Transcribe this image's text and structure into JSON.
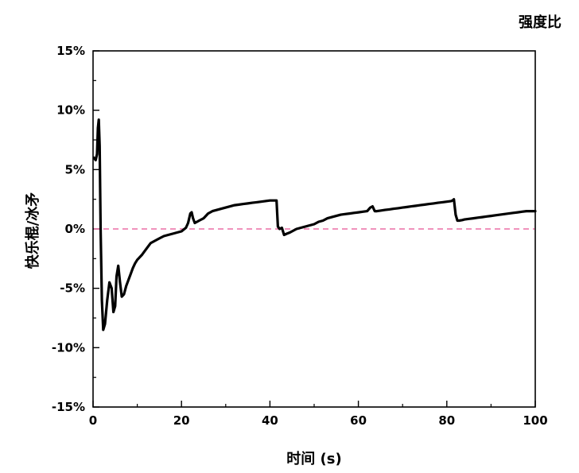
{
  "chart_data": {
    "type": "line",
    "title": "强度比",
    "xlabel": "时间 (s)",
    "ylabel": "快乐棍/冰矛",
    "xlim": [
      0,
      100
    ],
    "ylim": [
      -15,
      15
    ],
    "x_ticks": [
      0,
      20,
      40,
      60,
      80,
      100
    ],
    "x_tick_labels": [
      "0",
      "20",
      "40",
      "60",
      "80",
      "100"
    ],
    "y_ticks": [
      -15,
      -10,
      -5,
      0,
      5,
      10,
      15
    ],
    "y_tick_labels": [
      "-15%",
      "-10%",
      "-5%",
      "0%",
      "5%",
      "10%",
      "15%"
    ],
    "series": [
      {
        "color": "#000000",
        "style": "solid",
        "x": [
          0.2,
          0.6,
          0.9,
          1.1,
          1.3,
          1.5,
          1.7,
          2.0,
          2.3,
          2.7,
          3.2,
          3.7,
          4.2,
          4.6,
          5.0,
          5.3,
          5.7,
          6.1,
          6.5,
          7.0,
          7.5,
          8.0,
          8.5,
          9.0,
          9.5,
          10,
          11,
          12,
          13,
          14,
          15,
          16,
          17,
          18,
          19,
          20,
          21,
          21.5,
          22.0,
          22.3,
          22.6,
          23.0,
          23.5,
          24,
          25,
          26,
          27,
          28,
          29,
          30,
          31,
          32,
          33,
          34,
          35,
          36,
          37,
          38,
          39,
          40,
          41,
          41.5,
          41.8,
          42.2,
          42.7,
          43.2,
          43.8,
          44.5,
          45,
          46,
          47,
          48,
          49,
          50,
          51,
          52,
          53,
          54,
          55,
          56,
          57,
          58,
          59,
          60,
          61,
          62,
          62.7,
          63.2,
          63.7,
          64.2,
          65,
          66,
          67,
          68,
          69,
          70,
          71,
          72,
          73,
          74,
          75,
          76,
          77,
          78,
          79,
          80,
          81,
          81.3,
          81.6,
          82.0,
          82.4,
          82.8,
          83.5,
          84,
          85,
          86,
          87,
          88,
          89,
          90,
          91,
          92,
          93,
          94,
          95,
          96,
          97,
          98,
          99,
          100
        ],
        "y": [
          6.0,
          5.8,
          6.3,
          8.5,
          9.2,
          7.0,
          0.0,
          -6.0,
          -8.5,
          -8.0,
          -6.0,
          -4.5,
          -5.0,
          -7.0,
          -6.5,
          -4.0,
          -3.1,
          -4.5,
          -5.7,
          -5.5,
          -4.8,
          -4.3,
          -3.8,
          -3.3,
          -2.9,
          -2.6,
          -2.2,
          -1.7,
          -1.2,
          -1.0,
          -0.8,
          -0.6,
          -0.5,
          -0.4,
          -0.3,
          -0.2,
          0.1,
          0.5,
          1.3,
          1.4,
          0.9,
          0.5,
          0.6,
          0.7,
          0.9,
          1.3,
          1.5,
          1.6,
          1.7,
          1.8,
          1.9,
          2.0,
          2.05,
          2.1,
          2.15,
          2.2,
          2.25,
          2.3,
          2.35,
          2.4,
          2.4,
          2.4,
          0.2,
          0.0,
          0.1,
          -0.5,
          -0.4,
          -0.3,
          -0.2,
          0.0,
          0.1,
          0.2,
          0.3,
          0.4,
          0.6,
          0.7,
          0.9,
          1.0,
          1.1,
          1.2,
          1.25,
          1.3,
          1.35,
          1.4,
          1.45,
          1.5,
          1.8,
          1.9,
          1.5,
          1.5,
          1.55,
          1.6,
          1.65,
          1.7,
          1.75,
          1.8,
          1.85,
          1.9,
          1.95,
          2.0,
          2.05,
          2.1,
          2.15,
          2.2,
          2.25,
          2.3,
          2.35,
          2.4,
          2.5,
          1.2,
          0.7,
          0.7,
          0.75,
          0.8,
          0.85,
          0.9,
          0.95,
          1.0,
          1.05,
          1.1,
          1.15,
          1.2,
          1.25,
          1.3,
          1.35,
          1.4,
          1.45,
          1.5,
          1.5,
          1.5
        ]
      }
    ],
    "reference_line": {
      "y": 0,
      "color": "#ec6fa6",
      "style": "dashed"
    },
    "grid": false,
    "legend": "none"
  }
}
